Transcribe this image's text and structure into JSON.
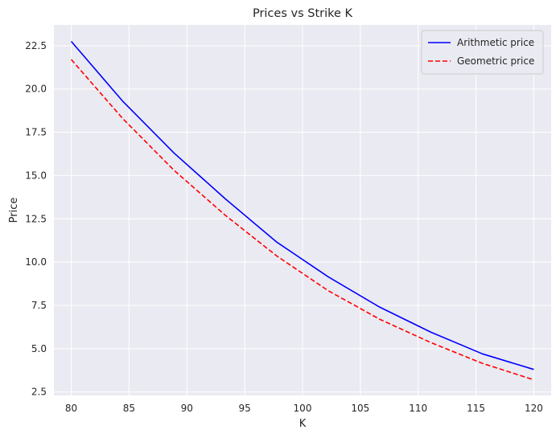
{
  "chart_data": {
    "type": "line",
    "title": "Prices vs Strike K",
    "xlabel": "K",
    "ylabel": "Price",
    "xlim": [
      78.5,
      121.5
    ],
    "ylim": [
      2.3,
      23.7
    ],
    "xticks": [
      80,
      85,
      90,
      95,
      100,
      105,
      110,
      115,
      120
    ],
    "yticks": [
      2.5,
      5.0,
      7.5,
      10.0,
      12.5,
      15.0,
      17.5,
      20.0,
      22.5
    ],
    "xtick_labels": [
      "80",
      "85",
      "90",
      "95",
      "100",
      "105",
      "110",
      "115",
      "120"
    ],
    "ytick_labels": [
      "2.5",
      "5.0",
      "7.5",
      "10.0",
      "12.5",
      "15.0",
      "17.5",
      "20.0",
      "22.5"
    ],
    "grid": true,
    "legend_position": "top-right",
    "x": [
      80,
      84.44,
      88.89,
      93.33,
      97.78,
      102.22,
      106.67,
      111.11,
      115.56,
      120
    ],
    "series": [
      {
        "name": "Arithmetic price",
        "color": "#0000ff",
        "style": "solid",
        "values": [
          22.75,
          19.3,
          16.3,
          13.65,
          11.15,
          9.15,
          7.4,
          5.95,
          4.7,
          3.8
        ]
      },
      {
        "name": "Geometric price",
        "color": "#ff0000",
        "style": "dashed",
        "values": [
          21.7,
          18.3,
          15.3,
          12.7,
          10.35,
          8.35,
          6.7,
          5.35,
          4.15,
          3.2
        ]
      }
    ]
  }
}
